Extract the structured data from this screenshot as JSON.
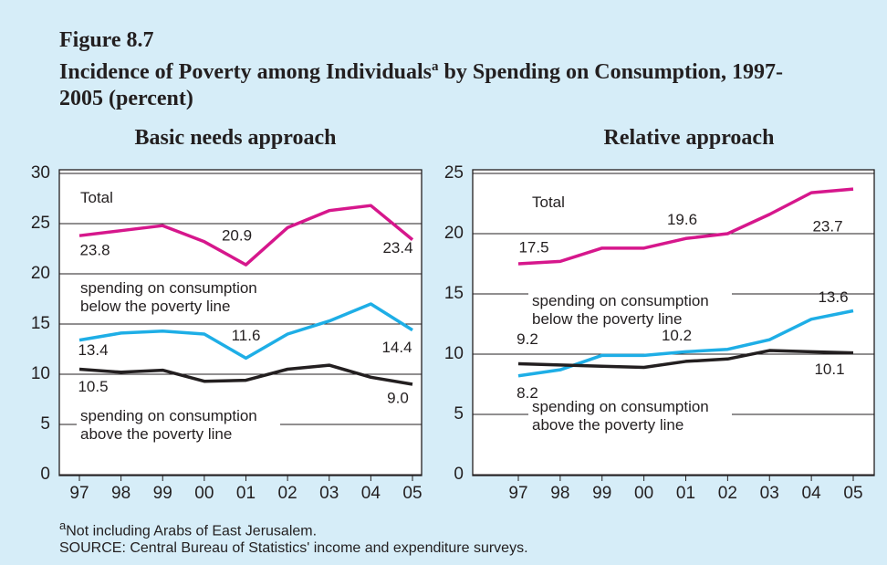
{
  "figure": {
    "label": "Figure 8.7",
    "title": "Incidence of Poverty among Individuals",
    "title_marker": "a",
    "title_rest": "by Spending on Consumption, 1997-2005 (percent)",
    "footnote_marker": "a",
    "footnote": "Not including Arabs of East Jerusalem.",
    "source": "SOURCE: Central Bureau of Statistics' income and expenditure surveys."
  },
  "chart_data": [
    {
      "type": "line",
      "title": "Basic needs approach",
      "categories": [
        "97",
        "98",
        "99",
        "00",
        "01",
        "02",
        "03",
        "04",
        "05"
      ],
      "ylim": [
        0,
        30
      ],
      "yticks": [
        0,
        5,
        10,
        15,
        20,
        25,
        30
      ],
      "grid": true,
      "series": [
        {
          "name": "Total",
          "color": "#d6178c",
          "values": [
            23.8,
            24.3,
            24.8,
            23.2,
            20.9,
            24.6,
            26.3,
            26.8,
            23.4
          ],
          "value_labels": [
            "23.8",
            null,
            null,
            null,
            "20.9",
            null,
            null,
            null,
            "23.4"
          ]
        },
        {
          "name": "spending on consumption below the poverty line",
          "color": "#1eaee6",
          "values": [
            13.4,
            14.1,
            14.3,
            14.0,
            11.6,
            14.0,
            15.3,
            17.0,
            14.4
          ],
          "value_labels": [
            "13.4",
            null,
            null,
            null,
            "11.6",
            null,
            null,
            null,
            "14.4"
          ]
        },
        {
          "name": "spending on consumption above the poverty line",
          "color": "#231f20",
          "values": [
            10.5,
            10.2,
            10.4,
            9.3,
            9.4,
            10.5,
            10.9,
            9.7,
            9.0
          ],
          "value_labels": [
            "10.5",
            null,
            null,
            null,
            null,
            null,
            null,
            null,
            "9.0"
          ]
        }
      ]
    },
    {
      "type": "line",
      "title": "Relative approach",
      "categories": [
        "97",
        "98",
        "99",
        "00",
        "01",
        "02",
        "03",
        "04",
        "05"
      ],
      "ylim": [
        0,
        25
      ],
      "yticks": [
        0,
        5,
        10,
        15,
        20,
        25
      ],
      "grid": true,
      "series": [
        {
          "name": "Total",
          "color": "#d6178c",
          "values": [
            17.5,
            17.7,
            18.8,
            18.8,
            19.6,
            20.0,
            21.6,
            23.4,
            23.7
          ],
          "value_labels": [
            "17.5",
            null,
            null,
            null,
            "19.6",
            null,
            null,
            null,
            "23.7"
          ]
        },
        {
          "name": "spending on consumption below the poverty line",
          "color": "#1eaee6",
          "values": [
            8.2,
            8.7,
            9.9,
            9.9,
            10.2,
            10.4,
            11.2,
            12.9,
            13.6
          ],
          "value_labels": [
            "8.2",
            null,
            null,
            null,
            "10.2",
            null,
            null,
            null,
            "13.6"
          ]
        },
        {
          "name": "spending on consumption above the poverty line",
          "color": "#231f20",
          "values": [
            9.2,
            9.1,
            9.0,
            8.9,
            9.4,
            9.6,
            10.3,
            10.2,
            10.1
          ],
          "value_labels": [
            "9.2",
            null,
            null,
            null,
            null,
            null,
            null,
            null,
            "10.1"
          ]
        }
      ]
    }
  ]
}
